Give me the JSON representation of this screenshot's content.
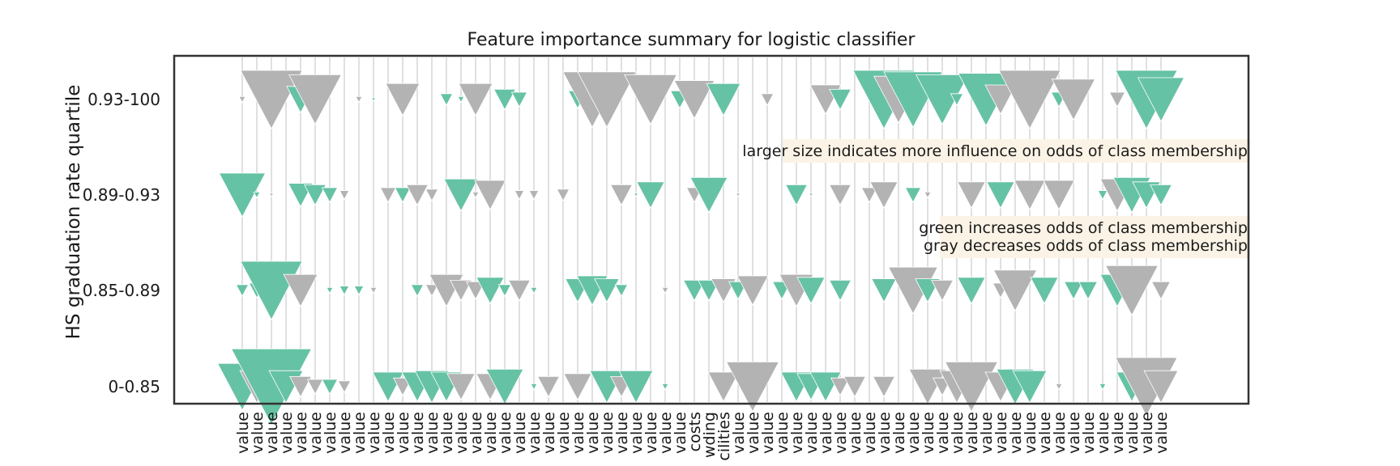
{
  "chart_data": {
    "type": "scatter",
    "marker": "triangle-down",
    "title": "Feature importance summary for logistic classifier",
    "ylabel": "HS graduation rate quartile",
    "xlabel": "",
    "y_categories": [
      "0.93-100",
      "0.89-0.93",
      "0.85-0.89",
      "0-0.85"
    ],
    "colors": {
      "increase": "#66c2a5",
      "decrease": "#b3b3b3",
      "gridline": "#cccccc",
      "note_bg": "#fbf3e6"
    },
    "annotations": [
      "larger size indicates more influence on odds of class membership",
      "green increases odds of class membership",
      "gray decreases odds of class membership"
    ],
    "legend": {
      "increase": "green increases odds of class membership",
      "decrease": "gray decreases odds of class membership"
    },
    "x_tick_labels": [
      "value",
      "value",
      "value",
      "value",
      "value",
      "value",
      "value",
      "value",
      "value",
      "value",
      "value",
      "value",
      "value",
      "value",
      "value",
      "value",
      "value",
      "value",
      "value",
      "value",
      "value",
      "value",
      "value",
      "value",
      "value",
      "value",
      "value",
      "value",
      "value",
      "value",
      "value",
      "costs",
      "wding",
      "cilities",
      "value",
      "value",
      "value",
      "value",
      "value",
      "value",
      "value",
      "value",
      "value",
      "value",
      "value",
      "value",
      "value",
      "value",
      "value",
      "value",
      "value",
      "value",
      "value",
      "value",
      "value",
      "value",
      "value",
      "value",
      "value",
      "value",
      "value",
      "value",
      "value",
      "value"
    ],
    "features": [
      {
        "v": [
          -0.1,
          0.75,
          0.2,
          0.8
        ]
      },
      {
        "v": [
          -0.05,
          0.1,
          0.25,
          -0.55
        ]
      },
      {
        "v": [
          -1.0,
          -0.05,
          1.0,
          1.3
        ]
      },
      {
        "v": [
          0.0,
          0.0,
          0.0,
          0.55
        ]
      },
      {
        "v": [
          0.45,
          0.4,
          -0.55,
          -0.35
        ]
      },
      {
        "v": [
          -0.85,
          0.35,
          0.0,
          -0.25
        ]
      },
      {
        "v": [
          0.0,
          0.25,
          0.1,
          0.25
        ]
      },
      {
        "v": [
          0.0,
          -0.15,
          0.15,
          -0.2
        ]
      },
      {
        "v": [
          -0.1,
          0.0,
          0.15,
          0.0
        ]
      },
      {
        "v": [
          0.02,
          0.0,
          -0.1,
          0.0
        ]
      },
      {
        "v": [
          0.0,
          -0.25,
          0.0,
          0.5
        ]
      },
      {
        "v": [
          -0.55,
          0.25,
          0.0,
          -0.3
        ]
      },
      {
        "v": [
          0.0,
          -0.35,
          0.2,
          0.5
        ]
      },
      {
        "v": [
          0.0,
          -0.2,
          -0.2,
          0.55
        ]
      },
      {
        "v": [
          0.2,
          0.0,
          -0.55,
          0.5
        ]
      },
      {
        "v": [
          0.1,
          0.55,
          -0.35,
          -0.45
        ]
      },
      {
        "v": [
          -0.55,
          -0.1,
          -0.3,
          0.0
        ]
      },
      {
        "v": [
          0.0,
          -0.5,
          0.45,
          -0.45
        ]
      },
      {
        "v": [
          0.35,
          0.0,
          0.2,
          0.6
        ]
      },
      {
        "v": [
          0.25,
          -0.15,
          -0.35,
          0.0
        ]
      },
      {
        "v": [
          0.0,
          -0.15,
          0.1,
          0.1
        ]
      },
      {
        "v": [
          0.0,
          0.0,
          0.0,
          -0.35
        ]
      },
      {
        "v": [
          0.0,
          -0.2,
          0.0,
          0.0
        ]
      },
      {
        "v": [
          0.3,
          0.0,
          0.4,
          -0.45
        ]
      },
      {
        "v": [
          -0.95,
          0.0,
          0.5,
          0.0
        ]
      },
      {
        "v": [
          -0.95,
          0.0,
          0.4,
          0.55
        ]
      },
      {
        "v": [
          0.0,
          -0.35,
          0.2,
          -0.35
        ]
      },
      {
        "v": [
          0.0,
          0.05,
          0.0,
          0.55
        ]
      },
      {
        "v": [
          -0.85,
          0.45,
          0.0,
          0.0
        ]
      },
      {
        "v": [
          0.0,
          0.0,
          -0.1,
          0.1
        ]
      },
      {
        "v": [
          0.3,
          0.0,
          0.0,
          0.0
        ]
      },
      {
        "v": [
          -0.65,
          -0.25,
          0.35,
          0.0
        ]
      },
      {
        "v": [
          0.0,
          0.6,
          0.35,
          0.0
        ]
      },
      {
        "v": [
          0.55,
          0.0,
          -0.4,
          -0.5
        ]
      },
      {
        "v": [
          0.0,
          -0.05,
          0.3,
          0.0
        ]
      },
      {
        "v": [
          0.0,
          0.0,
          -0.5,
          -0.85
        ]
      },
      {
        "v": [
          -0.2,
          0.0,
          0.0,
          0.0
        ]
      },
      {
        "v": [
          0.0,
          0.0,
          0.3,
          0.0
        ]
      },
      {
        "v": [
          0.0,
          0.35,
          -0.55,
          0.5
        ]
      },
      {
        "v": [
          0.0,
          -0.05,
          0.45,
          0.45
        ]
      },
      {
        "v": [
          -0.5,
          0.0,
          0.0,
          0.5
        ]
      },
      {
        "v": [
          0.35,
          -0.35,
          0.35,
          -0.3
        ]
      },
      {
        "v": [
          0.0,
          0.0,
          0.0,
          -0.35
        ]
      },
      {
        "v": [
          0.0,
          -0.25,
          0.0,
          0.0
        ]
      },
      {
        "v": [
          1.0,
          -0.45,
          0.4,
          -0.35
        ]
      },
      {
        "v": [
          -0.8,
          0.0,
          0.0,
          0.0
        ]
      },
      {
        "v": [
          0.95,
          0.25,
          -0.8,
          0.0
        ]
      },
      {
        "v": [
          0.0,
          -0.1,
          0.4,
          -0.6
        ]
      },
      {
        "v": [
          0.85,
          0.0,
          -0.35,
          -0.3
        ]
      },
      {
        "v": [
          0.2,
          0.0,
          0.0,
          -0.55
        ]
      },
      {
        "v": [
          0.0,
          -0.45,
          0.45,
          -0.85
        ]
      },
      {
        "v": [
          0.9,
          0.0,
          0.0,
          0.0
        ]
      },
      {
        "v": [
          -0.5,
          0.45,
          -0.25,
          -0.5
        ]
      },
      {
        "v": [
          0.0,
          0.0,
          -0.7,
          0.6
        ]
      },
      {
        "v": [
          -1.0,
          -0.5,
          0.0,
          0.55
        ]
      },
      {
        "v": [
          0.0,
          0.0,
          0.45,
          0.0
        ]
      },
      {
        "v": [
          0.25,
          -0.5,
          0.0,
          -0.1
        ]
      },
      {
        "v": [
          -0.7,
          0.0,
          0.3,
          0.0
        ]
      },
      {
        "v": [
          0.0,
          0.0,
          0.3,
          0.0
        ]
      },
      {
        "v": [
          0.0,
          0.15,
          0.0,
          0.1
        ]
      },
      {
        "v": [
          -0.25,
          -0.55,
          0.55,
          0.0
        ]
      },
      {
        "v": [
          0.0,
          0.6,
          -0.85,
          0.5
        ]
      },
      {
        "v": [
          1.0,
          0.45,
          0.0,
          -1.0
        ]
      },
      {
        "v": [
          0.75,
          0.35,
          -0.3,
          -0.55
        ]
      }
    ]
  }
}
